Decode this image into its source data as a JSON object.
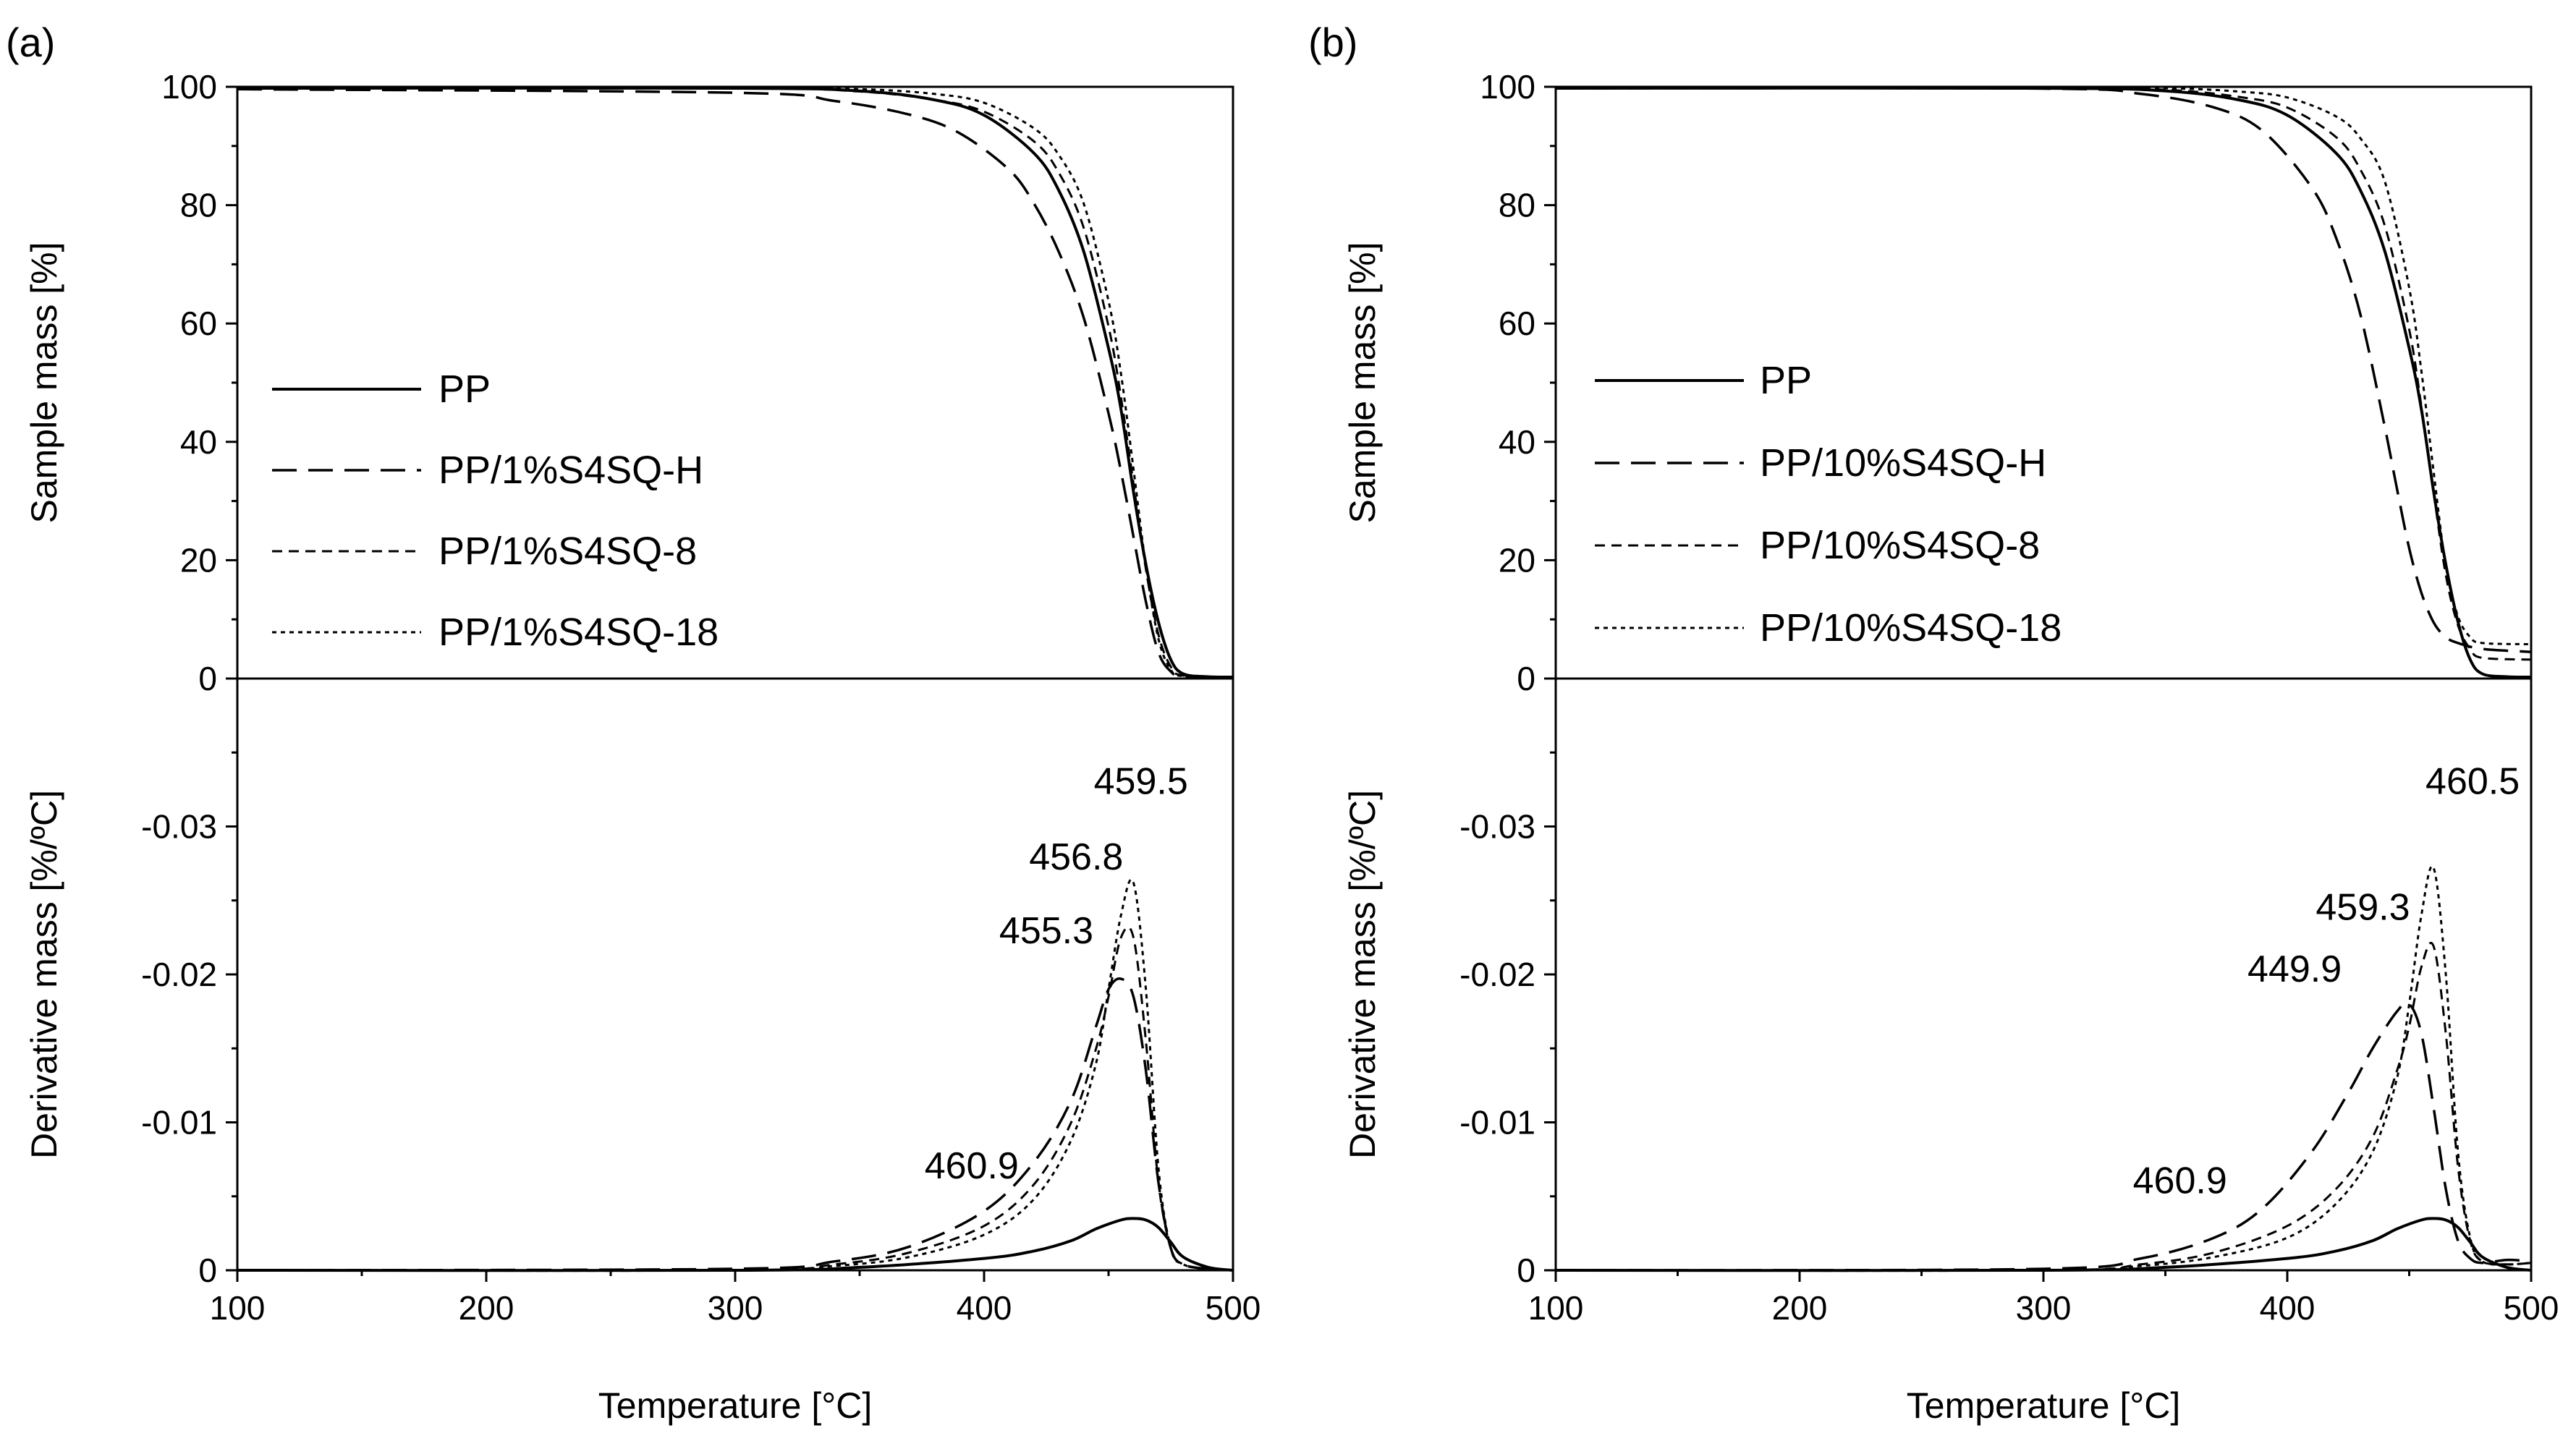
{
  "chart_data": [
    {
      "panel_label": "(a)",
      "type": "line",
      "xlabel": "Temperature [°C]",
      "xlim": [
        100,
        500
      ],
      "x_ticks": [
        100,
        200,
        300,
        400,
        500
      ],
      "x_tick_labels": [
        "100",
        "200",
        "300",
        "400",
        "500"
      ],
      "top": {
        "ylabel": "Sample mass [%]",
        "ylim": [
          0,
          100
        ],
        "y_ticks": [
          0,
          20,
          40,
          60,
          80,
          100
        ],
        "y_tick_labels": [
          "0",
          "20",
          "40",
          "60",
          "80",
          "100"
        ],
        "legend_position": "middle-left",
        "series": [
          {
            "name": "PP",
            "style": "solid",
            "x": [
              100,
              300,
              350,
              380,
              400,
              420,
              430,
              440,
              450,
              455,
              460,
              465,
              470,
              475,
              480,
              490,
              500
            ],
            "values": [
              100.5,
              100.3,
              99.3,
              97.8,
              95.2,
              88.8,
              82.5,
              72.2,
              55.8,
              45.5,
              31.6,
              19.3,
              9.6,
              3.2,
              0.8,
              0.3,
              0.2
            ]
          },
          {
            "name": "PP/1%S4SQ-H",
            "style": "long-dash",
            "x": [
              100,
              300,
              340,
              370,
              390,
              410,
              420,
              430,
              440,
              450,
              455,
              460,
              465,
              470,
              475,
              480,
              500
            ],
            "values": [
              99.6,
              99.0,
              97.6,
              95.3,
              92.2,
              86.0,
              80.3,
              72.1,
              61.0,
              44.8,
              35.0,
              24.0,
              13.0,
              4.5,
              1.2,
              0.4,
              0.2
            ]
          },
          {
            "name": "PP/1%S4SQ-8",
            "style": "short-dash",
            "x": [
              100,
              300,
              350,
              380,
              400,
              420,
              430,
              440,
              450,
              455,
              460,
              465,
              470,
              475,
              480,
              500
            ],
            "values": [
              100.2,
              100.0,
              99.2,
              97.8,
              95.8,
              90.8,
              85.5,
              76.2,
              59.5,
              47.5,
              33.0,
              18.5,
              7.5,
              2.0,
              0.5,
              0.2
            ]
          },
          {
            "name": "PP/1%S4SQ-18",
            "style": "dotted",
            "x": [
              100,
              300,
              350,
              380,
              400,
              420,
              430,
              440,
              450,
              455,
              460,
              465,
              470,
              475,
              480,
              500
            ],
            "values": [
              100.0,
              100.0,
              99.6,
              98.8,
              97.3,
              93.0,
              88.5,
              80.3,
              63.8,
              51.5,
              35.5,
              19.0,
              6.8,
              1.5,
              0.4,
              0.2
            ]
          }
        ]
      },
      "bottom": {
        "ylabel": "Derivative mass [%/ºC]",
        "ylim": [
          0,
          -0.04
        ],
        "y_ticks": [
          0,
          -0.01,
          -0.02,
          -0.03
        ],
        "y_tick_labels": [
          "0",
          "-0.01",
          "-0.02",
          "-0.03"
        ],
        "series": [
          {
            "name": "PP",
            "style": "solid",
            "x": [
              100,
              300,
              350,
              400,
              420,
              435,
              445,
              455,
              460,
              465,
              470,
              475,
              480,
              490,
              500
            ],
            "values": [
              0,
              0,
              -0.0002,
              -0.0008,
              -0.0013,
              -0.002,
              -0.0028,
              -0.0034,
              -0.0035,
              -0.0034,
              -0.0029,
              -0.0019,
              -0.0009,
              -0.0002,
              0
            ]
          },
          {
            "name": "PP/1%S4SQ-H",
            "style": "long-dash",
            "x": [
              100,
              300,
              340,
              370,
              400,
              420,
              435,
              445,
              450,
              455,
              460,
              465,
              470,
              475,
              480,
              490,
              500
            ],
            "values": [
              0,
              -0.0001,
              -0.0006,
              -0.0016,
              -0.004,
              -0.0073,
              -0.0115,
              -0.0165,
              -0.019,
              -0.0197,
              -0.0185,
              -0.0135,
              -0.006,
              -0.0015,
              -0.0004,
              -0.0001,
              0
            ]
          },
          {
            "name": "PP/1%S4SQ-8",
            "style": "short-dash",
            "x": [
              100,
              300,
              340,
              370,
              400,
              420,
              435,
              445,
              450,
              455,
              460,
              465,
              470,
              475,
              480,
              490,
              500
            ],
            "values": [
              0,
              0,
              -0.0004,
              -0.0012,
              -0.003,
              -0.0058,
              -0.01,
              -0.015,
              -0.0185,
              -0.0225,
              -0.0225,
              -0.0155,
              -0.006,
              -0.0015,
              -0.0004,
              -0.0001,
              0
            ]
          },
          {
            "name": "PP/1%S4SQ-18",
            "style": "dotted",
            "x": [
              100,
              300,
              340,
              370,
              400,
              420,
              435,
              445,
              450,
              455,
              460,
              465,
              470,
              475,
              480,
              490,
              500
            ],
            "values": [
              0,
              0,
              -0.0003,
              -0.0009,
              -0.0024,
              -0.0048,
              -0.0088,
              -0.014,
              -0.019,
              -0.024,
              -0.0262,
              -0.019,
              -0.007,
              -0.0015,
              -0.0004,
              -0.0001,
              0
            ]
          }
        ],
        "annotations": [
          {
            "text": "459.5",
            "x": 463,
            "y": -0.0322
          },
          {
            "text": "456.8",
            "x": 437,
            "y": -0.0271
          },
          {
            "text": "455.3",
            "x": 425,
            "y": -0.0221
          },
          {
            "text": "460.9",
            "x": 395,
            "y": -0.0062
          }
        ]
      }
    },
    {
      "panel_label": "(b)",
      "type": "line",
      "xlabel": "Temperature [°C]",
      "xlim": [
        100,
        500
      ],
      "x_ticks": [
        100,
        200,
        300,
        400,
        500
      ],
      "x_tick_labels": [
        "100",
        "200",
        "300",
        "400",
        "500"
      ],
      "top": {
        "ylabel": "Sample mass [%]",
        "ylim": [
          0,
          100
        ],
        "y_ticks": [
          0,
          20,
          40,
          60,
          80,
          100
        ],
        "y_tick_labels": [
          "0",
          "20",
          "40",
          "60",
          "80",
          "100"
        ],
        "legend_position": "middle-left",
        "series": [
          {
            "name": "PP",
            "style": "solid",
            "x": [
              100,
              300,
              350,
              380,
              400,
              420,
              430,
              440,
              450,
              455,
              460,
              465,
              470,
              475,
              480,
              490,
              500
            ],
            "values": [
              100.5,
              100.3,
              99.3,
              97.8,
              95.2,
              88.8,
              82.5,
              72.2,
              55.8,
              45.5,
              31.6,
              19.3,
              9.6,
              3.2,
              0.8,
              0.3,
              0.2
            ]
          },
          {
            "name": "PP/10%S4SQ-H",
            "style": "long-dash",
            "x": [
              100,
              300,
              340,
              370,
              390,
              410,
              420,
              430,
              440,
              445,
              450,
              455,
              460,
              465,
              470,
              480,
              500
            ],
            "values": [
              100.3,
              99.7,
              98.8,
              96.5,
              92.5,
              83.0,
              74.5,
              61.5,
              42.5,
              32.0,
              22.0,
              14.5,
              9.5,
              7.0,
              6.0,
              5.0,
              4.5
            ]
          },
          {
            "name": "PP/10%S4SQ-8",
            "style": "short-dash",
            "x": [
              100,
              300,
              350,
              380,
              400,
              420,
              430,
              440,
              450,
              455,
              460,
              465,
              470,
              475,
              480,
              500
            ],
            "values": [
              100.4,
              100.2,
              99.5,
              98.3,
              96.5,
              91.5,
              86.0,
              76.5,
              59.0,
              46.0,
              31.5,
              17.5,
              9.0,
              5.0,
              3.5,
              3.2
            ]
          },
          {
            "name": "PP/10%S4SQ-18",
            "style": "dotted",
            "x": [
              100,
              300,
              350,
              380,
              400,
              420,
              430,
              440,
              450,
              455,
              460,
              465,
              470,
              475,
              480,
              500
            ],
            "values": [
              100.5,
              100.4,
              99.9,
              99.2,
              98.2,
              95.0,
              91.3,
              84.0,
              66.0,
              52.0,
              35.0,
              19.0,
              10.5,
              7.0,
              6.0,
              5.8
            ]
          }
        ]
      },
      "bottom": {
        "ylabel": "Derivative mass [%/ºC]",
        "ylim": [
          0,
          -0.04
        ],
        "y_ticks": [
          0,
          -0.01,
          -0.02,
          -0.03
        ],
        "y_tick_labels": [
          "0",
          "-0.01",
          "-0.02",
          "-0.03"
        ],
        "series": [
          {
            "name": "PP",
            "style": "solid",
            "x": [
              100,
              300,
              350,
              400,
              420,
              435,
              445,
              455,
              460,
              465,
              470,
              475,
              480,
              490,
              500
            ],
            "values": [
              0,
              0,
              -0.0002,
              -0.0008,
              -0.0013,
              -0.002,
              -0.0028,
              -0.0034,
              -0.0035,
              -0.0034,
              -0.0029,
              -0.0019,
              -0.0009,
              -0.0002,
              0
            ]
          },
          {
            "name": "PP/10%S4SQ-H",
            "style": "long-dash",
            "x": [
              100,
              300,
              340,
              370,
              390,
              410,
              425,
              435,
              445,
              450,
              455,
              460,
              465,
              470,
              475,
              480,
              490,
              500
            ],
            "values": [
              0,
              -0.0001,
              -0.0008,
              -0.0022,
              -0.0042,
              -0.008,
              -0.012,
              -0.015,
              -0.0175,
              -0.018,
              -0.016,
              -0.011,
              -0.0055,
              -0.002,
              -0.0008,
              -0.0005,
              -0.0007,
              -0.0006
            ]
          },
          {
            "name": "PP/10%S4SQ-8",
            "style": "short-dash",
            "x": [
              100,
              300,
              340,
              370,
              400,
              420,
              435,
              445,
              450,
              455,
              460,
              465,
              470,
              475,
              480,
              490,
              500
            ],
            "values": [
              0,
              0,
              -0.0004,
              -0.0012,
              -0.003,
              -0.0055,
              -0.009,
              -0.0135,
              -0.0165,
              -0.0205,
              -0.0219,
              -0.016,
              -0.007,
              -0.002,
              -0.0006,
              -0.0004,
              -0.0005
            ]
          },
          {
            "name": "PP/10%S4SQ-18",
            "style": "dotted",
            "x": [
              100,
              300,
              340,
              370,
              400,
              420,
              435,
              445,
              450,
              455,
              460,
              465,
              470,
              475,
              480,
              490,
              500
            ],
            "values": [
              0,
              0,
              -0.0003,
              -0.0009,
              -0.0022,
              -0.0045,
              -0.008,
              -0.013,
              -0.018,
              -0.024,
              -0.0272,
              -0.02,
              -0.008,
              -0.0022,
              -0.0006,
              -0.0004,
              -0.0005
            ]
          }
        ],
        "annotations": [
          {
            "text": "460.5",
            "x": 476,
            "y": -0.0322
          },
          {
            "text": "459.3",
            "x": 431,
            "y": -0.0237
          },
          {
            "text": "449.9",
            "x": 403,
            "y": -0.0195
          },
          {
            "text": "460.9",
            "x": 356,
            "y": -0.0052
          }
        ]
      }
    }
  ]
}
